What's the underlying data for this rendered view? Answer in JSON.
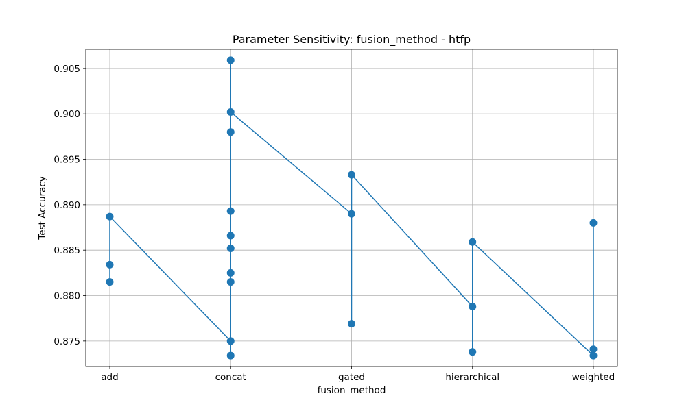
{
  "chart_data": {
    "type": "line",
    "title": "Parameter Sensitivity: fusion_method - htfp",
    "xlabel": "fusion_method",
    "ylabel": "Test Accuracy",
    "categories": [
      "add",
      "concat",
      "gated",
      "hierarchical",
      "weighted"
    ],
    "ylim": [
      0.8722,
      0.9071
    ],
    "yticks": [
      0.875,
      0.88,
      0.885,
      0.89,
      0.895,
      0.9,
      0.905
    ],
    "ytick_labels": [
      "0.875",
      "0.880",
      "0.885",
      "0.890",
      "0.895",
      "0.900",
      "0.905"
    ],
    "grid": true,
    "color": "#1f77b4",
    "points": [
      {
        "x": "add",
        "y": 0.8815
      },
      {
        "x": "add",
        "y": 0.8834
      },
      {
        "x": "add",
        "y": 0.8887
      },
      {
        "x": "concat",
        "y": 0.875
      },
      {
        "x": "concat",
        "y": 0.8734
      },
      {
        "x": "concat",
        "y": 0.8815
      },
      {
        "x": "concat",
        "y": 0.8825
      },
      {
        "x": "concat",
        "y": 0.8852
      },
      {
        "x": "concat",
        "y": 0.8866
      },
      {
        "x": "concat",
        "y": 0.8893
      },
      {
        "x": "concat",
        "y": 0.898
      },
      {
        "x": "concat",
        "y": 0.9059
      },
      {
        "x": "concat",
        "y": 0.9002
      },
      {
        "x": "gated",
        "y": 0.889
      },
      {
        "x": "gated",
        "y": 0.8769
      },
      {
        "x": "gated",
        "y": 0.8933
      },
      {
        "x": "hierarchical",
        "y": 0.8788
      },
      {
        "x": "hierarchical",
        "y": 0.8738
      },
      {
        "x": "hierarchical",
        "y": 0.8859
      },
      {
        "x": "weighted",
        "y": 0.8734
      },
      {
        "x": "weighted",
        "y": 0.8741
      },
      {
        "x": "weighted",
        "y": 0.888
      }
    ]
  }
}
